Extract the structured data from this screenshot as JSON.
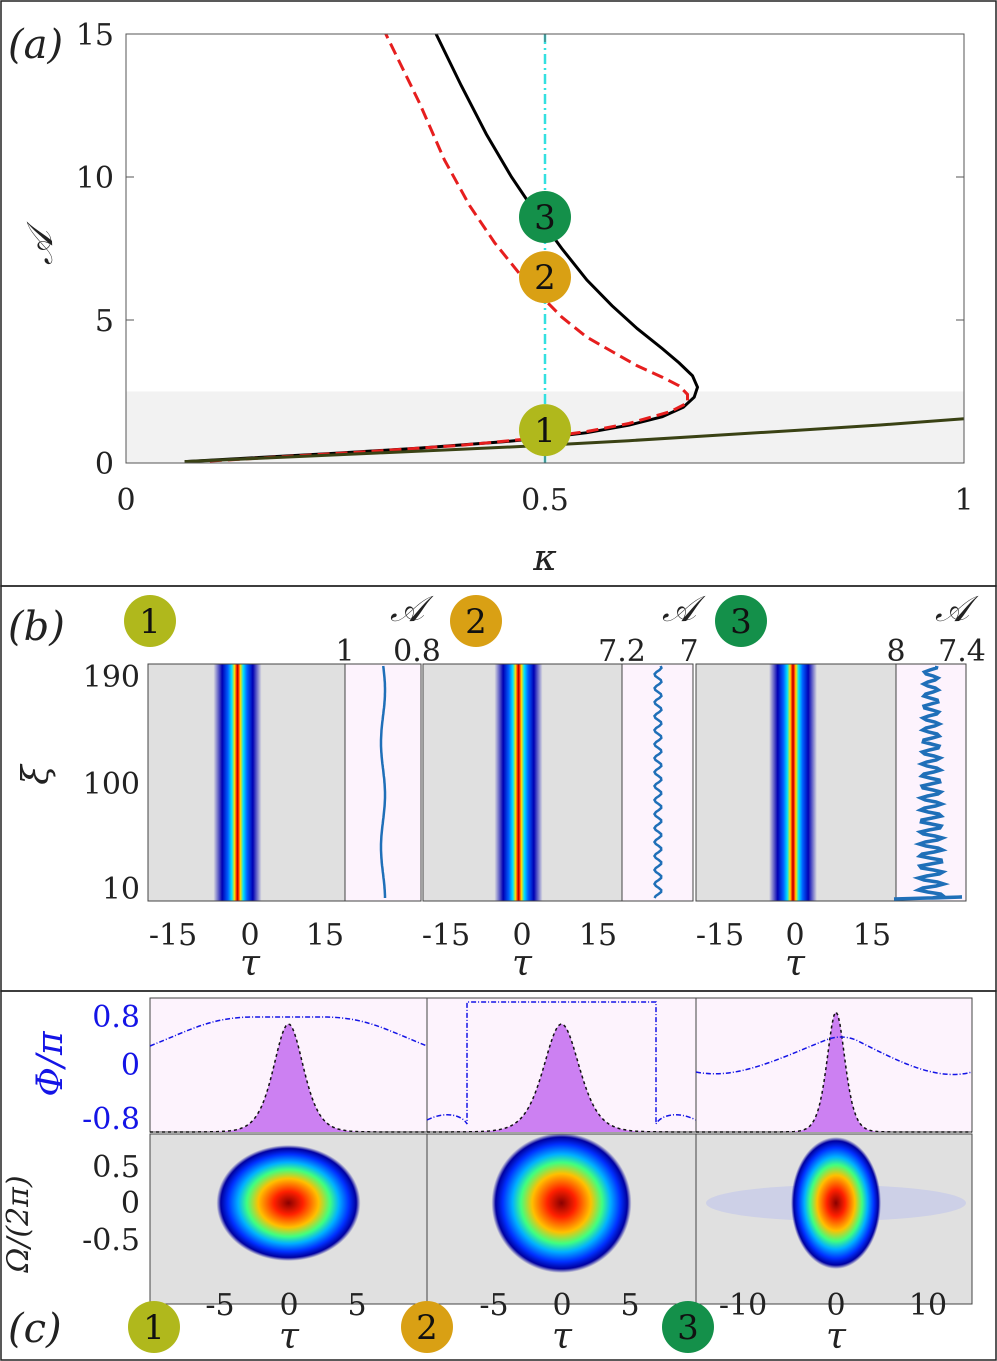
{
  "figure": {
    "panel_labels": [
      "(a)",
      "(b)",
      "(c)"
    ]
  },
  "badges": [
    {
      "label": "1",
      "color": "#b0b81c"
    },
    {
      "label": "2",
      "color": "#d9a014"
    },
    {
      "label": "3",
      "color": "#14904a"
    }
  ],
  "chart_data": [
    {
      "id": "a",
      "type": "line",
      "xlabel": "κ",
      "ylabel": "𝒜",
      "xlim": [
        0,
        1
      ],
      "ylim": [
        0,
        15
      ],
      "xticks": [
        "0",
        "0.5",
        "1"
      ],
      "yticks": [
        "0",
        "5",
        "10",
        "15"
      ],
      "shaded_band": {
        "y_from": 0,
        "y_to": 2.5,
        "color": "#f2f2f2"
      },
      "vertical_line": {
        "x": 0.5,
        "color": "#33e0e0",
        "style": "dash-dot"
      },
      "series": [
        {
          "color": "#000000",
          "style": "solid",
          "points": [
            [
              0.07,
              0.05
            ],
            [
              0.15,
              0.18
            ],
            [
              0.25,
              0.34
            ],
            [
              0.35,
              0.52
            ],
            [
              0.45,
              0.74
            ],
            [
              0.5,
              0.88
            ],
            [
              0.55,
              1.06
            ],
            [
              0.6,
              1.32
            ],
            [
              0.64,
              1.62
            ],
            [
              0.665,
              1.95
            ],
            [
              0.678,
              2.3
            ],
            [
              0.682,
              2.65
            ],
            [
              0.676,
              3.05
            ],
            [
              0.66,
              3.5
            ],
            [
              0.64,
              4.0
            ],
            [
              0.61,
              4.7
            ],
            [
              0.58,
              5.5
            ],
            [
              0.55,
              6.4
            ],
            [
              0.52,
              7.5
            ],
            [
              0.49,
              8.7
            ],
            [
              0.46,
              10.0
            ],
            [
              0.43,
              11.5
            ],
            [
              0.4,
              13.2
            ],
            [
              0.37,
              15.0
            ]
          ]
        },
        {
          "color": "#e61e1e",
          "style": "dashed",
          "points": [
            [
              0.1,
              0.07
            ],
            [
              0.2,
              0.24
            ],
            [
              0.3,
              0.42
            ],
            [
              0.4,
              0.62
            ],
            [
              0.5,
              0.9
            ],
            [
              0.55,
              1.1
            ],
            [
              0.6,
              1.38
            ],
            [
              0.65,
              1.8
            ],
            [
              0.67,
              2.1
            ],
            [
              0.67,
              2.4
            ],
            [
              0.66,
              2.7
            ],
            [
              0.64,
              3.0
            ],
            [
              0.61,
              3.4
            ],
            [
              0.58,
              3.9
            ],
            [
              0.55,
              4.4
            ],
            [
              0.52,
              5.1
            ],
            [
              0.5,
              5.7
            ],
            [
              0.47,
              6.6
            ],
            [
              0.44,
              7.7
            ],
            [
              0.41,
              9.0
            ],
            [
              0.38,
              10.6
            ],
            [
              0.35,
              12.6
            ],
            [
              0.31,
              15.0
            ]
          ]
        },
        {
          "color": "#3a4214",
          "style": "solid",
          "points": [
            [
              0.07,
              0.05
            ],
            [
              0.2,
              0.22
            ],
            [
              0.3,
              0.35
            ],
            [
              0.4,
              0.48
            ],
            [
              0.5,
              0.62
            ],
            [
              0.6,
              0.78
            ],
            [
              0.7,
              0.96
            ],
            [
              0.8,
              1.14
            ],
            [
              0.9,
              1.33
            ],
            [
              1.0,
              1.55
            ]
          ]
        }
      ],
      "markers": [
        {
          "label": "1",
          "x": 0.5,
          "y": 1.15
        },
        {
          "label": "2",
          "x": 0.5,
          "y": 6.5
        },
        {
          "label": "3",
          "x": 0.5,
          "y": 8.6
        }
      ]
    },
    {
      "id": "b",
      "type": "heatmap",
      "ylabel": "ξ",
      "xlabel": "τ",
      "yticks": [
        "10",
        "100",
        "190"
      ],
      "xticks": [
        "-15",
        "0",
        "15"
      ],
      "side_axis_label": "𝒜",
      "subpanels": [
        {
          "label": "1",
          "side_ticks": [
            "1",
            "0.8"
          ],
          "side_value": 0.88,
          "oscillation": "small"
        },
        {
          "label": "2",
          "side_ticks": [
            "7.2",
            "7"
          ],
          "side_value": 7.09,
          "oscillation": "medium"
        },
        {
          "label": "3",
          "side_ticks": [
            "8",
            "7.4"
          ],
          "side_value": 7.58,
          "oscillation": "large"
        }
      ]
    },
    {
      "id": "c",
      "type": "area",
      "ylabel_top": "Φ/π",
      "yticks_top": [
        "0.8",
        "0",
        "-0.8"
      ],
      "ylabel_bottom": "Ω/(2π)",
      "yticks_bottom": [
        "0.5",
        "0",
        "-0.5"
      ],
      "xlabel": "τ",
      "subpanels": [
        {
          "label": "1",
          "xticks": [
            "-5",
            "0",
            "5"
          ],
          "xlim": [
            -10,
            10
          ]
        },
        {
          "label": "2",
          "xticks": [
            "-5",
            "0",
            "5"
          ],
          "xlim": [
            -10,
            10
          ]
        },
        {
          "label": "3",
          "xticks": [
            "-10",
            "0",
            "10"
          ],
          "xlim": [
            -15,
            15
          ]
        }
      ]
    }
  ]
}
